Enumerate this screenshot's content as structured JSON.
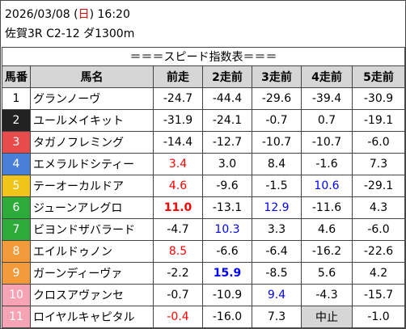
{
  "header": {
    "date_prefix": "2026/03/08 (",
    "weekday": "日",
    "date_suffix": ") 16:20",
    "race": "佐賀3R C2-12 ダ1300m"
  },
  "table": {
    "title": "＝＝＝スピード指数表＝＝＝",
    "columns": [
      "馬番",
      "馬名",
      "前走",
      "2走前",
      "3走前",
      "4走前",
      "5走前"
    ],
    "rows": [
      {
        "no": "1",
        "name": "グランノーヴ",
        "bg": "#ffffff",
        "fg": "#000000",
        "vals": [
          {
            "v": "-24.7",
            "c": ""
          },
          {
            "v": "-44.4",
            "c": ""
          },
          {
            "v": "-29.6",
            "c": ""
          },
          {
            "v": "-39.4",
            "c": ""
          },
          {
            "v": "-30.9",
            "c": ""
          }
        ]
      },
      {
        "no": "2",
        "name": "ユールメイキット",
        "bg": "#222222",
        "fg": "#ffffff",
        "vals": [
          {
            "v": "-31.9",
            "c": ""
          },
          {
            "v": "-24.1",
            "c": ""
          },
          {
            "v": "-0.7",
            "c": ""
          },
          {
            "v": "0.7",
            "c": ""
          },
          {
            "v": "-19.1",
            "c": ""
          }
        ]
      },
      {
        "no": "3",
        "name": "タガノフレミング",
        "bg": "#e84b4b",
        "fg": "#ffffff",
        "vals": [
          {
            "v": "-14.4",
            "c": ""
          },
          {
            "v": "-12.7",
            "c": ""
          },
          {
            "v": "-10.7",
            "c": ""
          },
          {
            "v": "-10.7",
            "c": ""
          },
          {
            "v": "-6.0",
            "c": ""
          }
        ]
      },
      {
        "no": "4",
        "name": "エメラルドシティー",
        "bg": "#4a7fd8",
        "fg": "#ffffff",
        "vals": [
          {
            "v": "3.4",
            "c": "red"
          },
          {
            "v": "3.0",
            "c": ""
          },
          {
            "v": "8.4",
            "c": ""
          },
          {
            "v": "-1.6",
            "c": ""
          },
          {
            "v": "7.3",
            "c": ""
          }
        ]
      },
      {
        "no": "5",
        "name": "テーオーカルドア",
        "bg": "#f0c419",
        "fg": "#ffffff",
        "vals": [
          {
            "v": "4.6",
            "c": "red"
          },
          {
            "v": "-9.6",
            "c": ""
          },
          {
            "v": "-1.5",
            "c": ""
          },
          {
            "v": "10.6",
            "c": "blue"
          },
          {
            "v": "-29.1",
            "c": ""
          }
        ]
      },
      {
        "no": "6",
        "name": "ジューンアレグロ",
        "bg": "#2eaa3a",
        "fg": "#ffffff",
        "vals": [
          {
            "v": "11.0",
            "c": "red bold"
          },
          {
            "v": "-13.1",
            "c": ""
          },
          {
            "v": "12.9",
            "c": "blue"
          },
          {
            "v": "-11.6",
            "c": ""
          },
          {
            "v": "4.3",
            "c": ""
          }
        ]
      },
      {
        "no": "7",
        "name": "ビヨンドザバラード",
        "bg": "#2eaa3a",
        "fg": "#ffffff",
        "vals": [
          {
            "v": "-4.7",
            "c": ""
          },
          {
            "v": "10.3",
            "c": "blue"
          },
          {
            "v": "3.3",
            "c": ""
          },
          {
            "v": "4.6",
            "c": ""
          },
          {
            "v": "-6.0",
            "c": ""
          }
        ]
      },
      {
        "no": "8",
        "name": "エイルドゥノン",
        "bg": "#f39a3a",
        "fg": "#ffffff",
        "vals": [
          {
            "v": "8.5",
            "c": "red"
          },
          {
            "v": "-6.6",
            "c": ""
          },
          {
            "v": "-6.4",
            "c": ""
          },
          {
            "v": "-16.2",
            "c": ""
          },
          {
            "v": "-22.6",
            "c": ""
          }
        ]
      },
      {
        "no": "9",
        "name": "ガーンディーヴァ",
        "bg": "#f39a3a",
        "fg": "#ffffff",
        "vals": [
          {
            "v": "-2.2",
            "c": ""
          },
          {
            "v": "15.9",
            "c": "blue bold"
          },
          {
            "v": "-8.5",
            "c": ""
          },
          {
            "v": "5.6",
            "c": ""
          },
          {
            "v": "4.2",
            "c": ""
          }
        ]
      },
      {
        "no": "10",
        "name": "クロスアヴァンセ",
        "bg": "#f5a3b5",
        "fg": "#ffffff",
        "vals": [
          {
            "v": "-0.7",
            "c": ""
          },
          {
            "v": "-10.9",
            "c": ""
          },
          {
            "v": "9.4",
            "c": "blue"
          },
          {
            "v": "-4.3",
            "c": ""
          },
          {
            "v": "-15.7",
            "c": ""
          }
        ]
      },
      {
        "no": "11",
        "name": "ロイヤルキャピタル",
        "bg": "#f5a3b5",
        "fg": "#ffffff",
        "vals": [
          {
            "v": "-0.4",
            "c": "red"
          },
          {
            "v": "-16.0",
            "c": ""
          },
          {
            "v": "7.3",
            "c": ""
          },
          {
            "v": "中止",
            "c": "stop"
          },
          {
            "v": "-1.0",
            "c": ""
          }
        ]
      }
    ]
  }
}
